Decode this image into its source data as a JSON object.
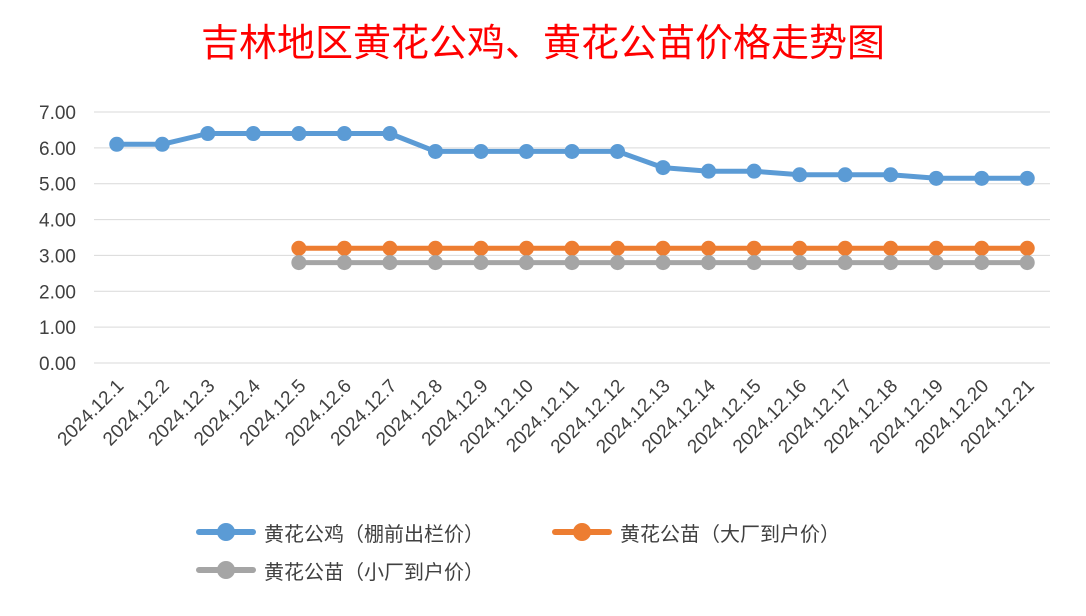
{
  "chart_data": {
    "type": "line",
    "title": "吉林地区黄花公鸡、黄花公苗价格走势图",
    "categories": [
      "2024.12.1",
      "2024.12.2",
      "2024.12.3",
      "2024.12.4",
      "2024.12.5",
      "2024.12.6",
      "2024.12.7",
      "2024.12.8",
      "2024.12.9",
      "2024.12.10",
      "2024.12.11",
      "2024.12.12",
      "2024.12.13",
      "2024.12.14",
      "2024.12.15",
      "2024.12.16",
      "2024.12.17",
      "2024.12.18",
      "2024.12.19",
      "2024.12.20",
      "2024.12.21"
    ],
    "y_ticks": [
      "0.00",
      "1.00",
      "2.00",
      "3.00",
      "4.00",
      "5.00",
      "6.00",
      "7.00"
    ],
    "ylim": [
      0,
      7
    ],
    "grid": true,
    "legend_position": "bottom",
    "series": [
      {
        "name": "黄花公鸡（棚前出栏价）",
        "color": "#5b9bd5",
        "values": [
          6.1,
          6.1,
          6.4,
          6.4,
          6.4,
          6.4,
          6.4,
          5.9,
          5.9,
          5.9,
          5.9,
          5.9,
          5.45,
          5.35,
          5.35,
          5.25,
          5.25,
          5.25,
          5.15,
          5.15,
          5.15
        ]
      },
      {
        "name": "黄花公苗（大厂到户价）",
        "color": "#ed7d31",
        "values": [
          null,
          null,
          null,
          null,
          3.2,
          3.2,
          3.2,
          3.2,
          3.2,
          3.2,
          3.2,
          3.2,
          3.2,
          3.2,
          3.2,
          3.2,
          3.2,
          3.2,
          3.2,
          3.2,
          3.2
        ]
      },
      {
        "name": "黄花公苗（小厂到户价）",
        "color": "#a5a5a5",
        "values": [
          null,
          null,
          null,
          null,
          2.8,
          2.8,
          2.8,
          2.8,
          2.8,
          2.8,
          2.8,
          2.8,
          2.8,
          2.8,
          2.8,
          2.8,
          2.8,
          2.8,
          2.8,
          2.8,
          2.8
        ]
      }
    ]
  }
}
